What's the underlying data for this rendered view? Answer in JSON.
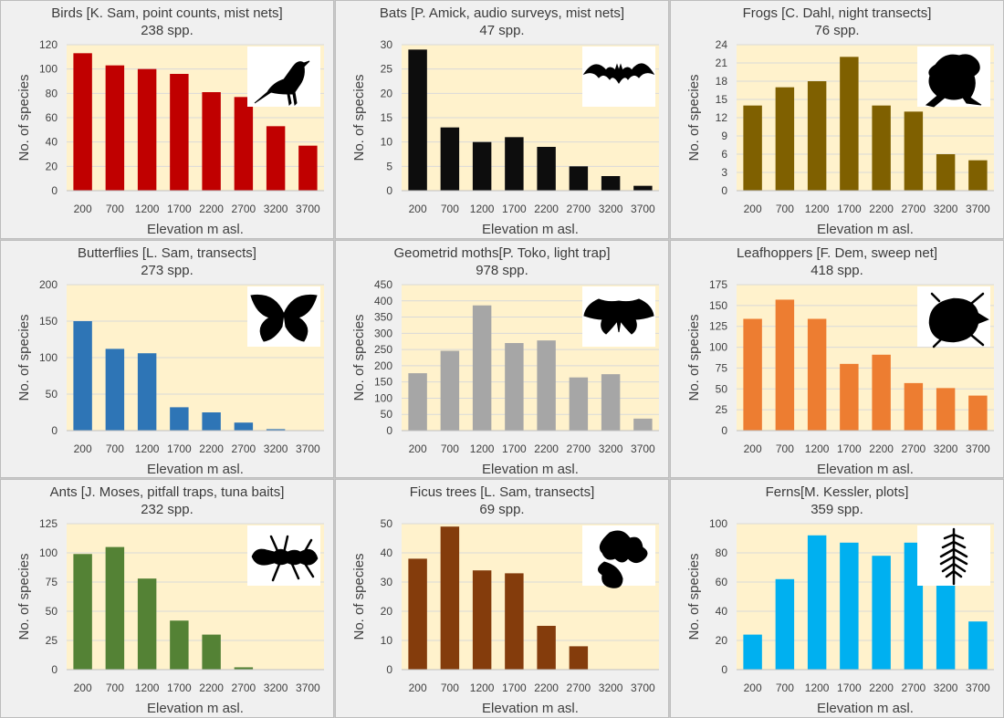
{
  "chart_data": [
    {
      "type": "bar",
      "title": "Birds [K. Sam, point counts, mist nets]",
      "subtitle": "238 spp.",
      "xlabel": "Elevation m asl.",
      "ylabel": "No. of species",
      "categories": [
        "200",
        "700",
        "1200",
        "1700",
        "2200",
        "2700",
        "3200",
        "3700"
      ],
      "values": [
        113,
        103,
        100,
        96,
        81,
        77,
        53,
        37
      ],
      "ylim": [
        0,
        120
      ],
      "yticks": [
        0,
        20,
        40,
        60,
        80,
        100,
        120
      ],
      "color": "#c00000",
      "icon": "bird-icon"
    },
    {
      "type": "bar",
      "title": "Bats [P. Amick, audio surveys, mist nets]",
      "subtitle": "47 spp.",
      "xlabel": "Elevation m asl.",
      "ylabel": "No. of species",
      "categories": [
        "200",
        "700",
        "1200",
        "1700",
        "2200",
        "2700",
        "3200",
        "3700"
      ],
      "values": [
        29,
        13,
        10,
        11,
        9,
        5,
        3,
        1
      ],
      "ylim": [
        0,
        30
      ],
      "yticks": [
        0,
        5,
        10,
        15,
        20,
        25,
        30
      ],
      "color": "#0d0d0d",
      "icon": "bat-icon"
    },
    {
      "type": "bar",
      "title": "Frogs [C. Dahl, night transects]",
      "subtitle": "76 spp.",
      "xlabel": "Elevation m asl.",
      "ylabel": "No. of species",
      "categories": [
        "200",
        "700",
        "1200",
        "1700",
        "2200",
        "2700",
        "3200",
        "3700"
      ],
      "values": [
        14,
        17,
        18,
        22,
        14,
        13,
        6,
        5
      ],
      "ylim": [
        0,
        24
      ],
      "yticks": [
        0,
        3,
        6,
        9,
        12,
        15,
        18,
        21,
        24
      ],
      "color": "#7f6000",
      "icon": "frog-icon"
    },
    {
      "type": "bar",
      "title": "Butterflies [L. Sam, transects]",
      "subtitle": "273 spp.",
      "xlabel": "Elevation m asl.",
      "ylabel": "No. of species",
      "categories": [
        "200",
        "700",
        "1200",
        "1700",
        "2200",
        "2700",
        "3200",
        "3700"
      ],
      "values": [
        150,
        112,
        106,
        32,
        25,
        11,
        2,
        0
      ],
      "ylim": [
        0,
        200
      ],
      "yticks": [
        0,
        50,
        100,
        150,
        200
      ],
      "color": "#2e75b6",
      "icon": "butterfly-icon"
    },
    {
      "type": "bar",
      "title": "Geometrid moths[P. Toko, light trap]",
      "subtitle": "978 spp.",
      "xlabel": "Elevation m asl.",
      "ylabel": "No. of species",
      "categories": [
        "200",
        "700",
        "1200",
        "1700",
        "2200",
        "2700",
        "3200",
        "3700"
      ],
      "values": [
        177,
        246,
        386,
        270,
        278,
        164,
        174,
        37
      ],
      "ylim": [
        0,
        450
      ],
      "yticks": [
        0,
        50,
        100,
        150,
        200,
        250,
        300,
        350,
        400,
        450
      ],
      "color": "#a6a6a6",
      "icon": "moth-icon"
    },
    {
      "type": "bar",
      "title": "Leafhoppers [F. Dem, sweep net]",
      "subtitle": "418 spp.",
      "xlabel": "Elevation m asl.",
      "ylabel": "No. of species",
      "categories": [
        "200",
        "700",
        "1200",
        "1700",
        "2200",
        "2700",
        "3200",
        "3700"
      ],
      "values": [
        134,
        157,
        134,
        80,
        91,
        57,
        51,
        42
      ],
      "ylim": [
        0,
        175
      ],
      "yticks": [
        0,
        25,
        50,
        75,
        100,
        125,
        150,
        175
      ],
      "color": "#ed7d31",
      "icon": "leafhopper-icon"
    },
    {
      "type": "bar",
      "title": "Ants [J. Moses, pitfall traps, tuna baits]",
      "subtitle": "232 spp.",
      "xlabel": "Elevation m asl.",
      "ylabel": "No. of species",
      "categories": [
        "200",
        "700",
        "1200",
        "1700",
        "2200",
        "2700",
        "3200",
        "3700"
      ],
      "values": [
        99,
        105,
        78,
        42,
        30,
        2,
        0,
        0
      ],
      "ylim": [
        0,
        125
      ],
      "yticks": [
        0,
        25,
        50,
        75,
        100,
        125
      ],
      "color": "#548235",
      "icon": "ant-icon"
    },
    {
      "type": "bar",
      "title": "Ficus trees [L. Sam, transects]",
      "subtitle": "69 spp.",
      "xlabel": "Elevation m asl.",
      "ylabel": "No. of species",
      "categories": [
        "200",
        "700",
        "1200",
        "1700",
        "2200",
        "2700",
        "3200",
        "3700"
      ],
      "values": [
        38,
        49,
        34,
        33,
        15,
        8,
        0,
        0
      ],
      "ylim": [
        0,
        50
      ],
      "yticks": [
        0,
        10,
        20,
        30,
        40,
        50
      ],
      "color": "#843c0c",
      "icon": "fig-icon"
    },
    {
      "type": "bar",
      "title": "Ferns[M. Kessler, plots]",
      "subtitle": "359 spp.",
      "xlabel": "Elevation m asl.",
      "ylabel": "No. of species",
      "categories": [
        "200",
        "700",
        "1200",
        "1700",
        "2200",
        "2700",
        "3200",
        "3700"
      ],
      "values": [
        24,
        62,
        92,
        87,
        78,
        87,
        62,
        33
      ],
      "ylim": [
        0,
        100
      ],
      "yticks": [
        0,
        20,
        40,
        60,
        80,
        100
      ],
      "color": "#00b0f0",
      "icon": "fern-icon"
    }
  ]
}
